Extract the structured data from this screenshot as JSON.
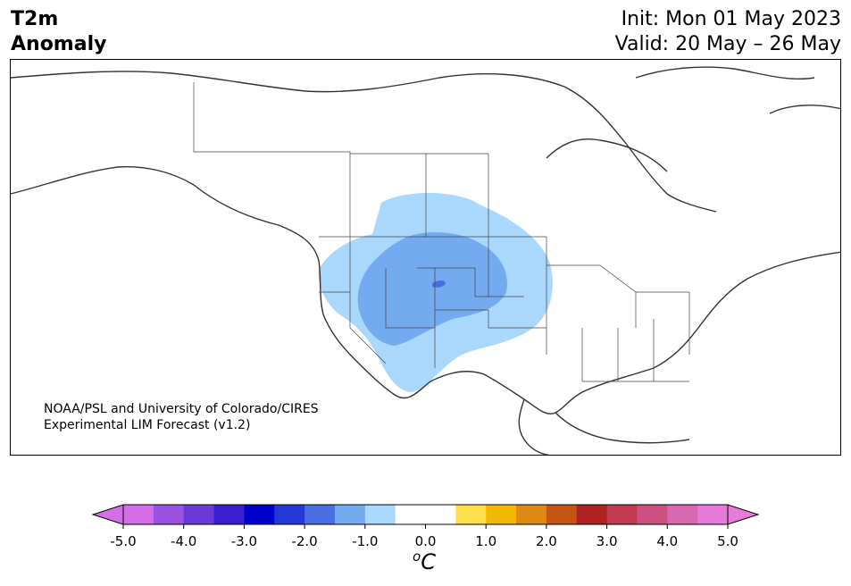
{
  "header": {
    "variable": "T2m",
    "field": "Anomaly",
    "init": "Init: Mon 01 May 2023",
    "valid": "Valid: 20 May – 26 May"
  },
  "credit": {
    "line1": "NOAA/PSL and University of Colorado/CIRES",
    "line2": "Experimental LIM Forecast (v1.2)"
  },
  "colorbar": {
    "unit_prefix": "o",
    "unit": "C",
    "tick_labels": [
      "-5.0",
      "-4.0",
      "-3.0",
      "-2.0",
      "-1.0",
      "0.0",
      "1.0",
      "2.0",
      "3.0",
      "4.0",
      "5.0"
    ],
    "colors": [
      "#d36de8",
      "#9b52e0",
      "#6a38d8",
      "#3a1ed0",
      "#0000cc",
      "#2438d8",
      "#4a6ee0",
      "#74aaf0",
      "#aad8fc",
      "#ffffff",
      "#ffffff",
      "#fee04a",
      "#f4b800",
      "#de8a12",
      "#c45414",
      "#b02222",
      "#c03a50",
      "#cc5080",
      "#d868b0",
      "#e67ad8"
    ],
    "under_color": "#d36de8",
    "over_color": "#e67ad8"
  },
  "anomaly_levels": {
    "light": "#aad8fc",
    "medium": "#74aaf0",
    "strong": "#4a6ee0"
  }
}
